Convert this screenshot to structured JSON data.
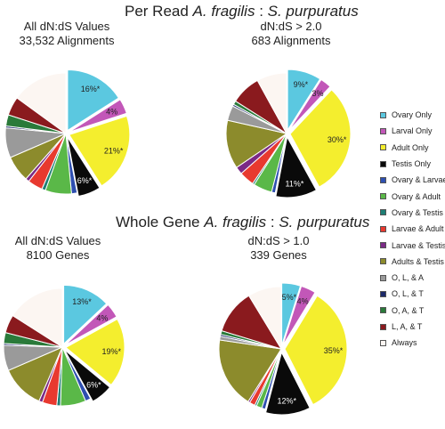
{
  "titles": {
    "per_read": {
      "prefix": "Per Read ",
      "species_a": "A. fragilis",
      "sep": " : ",
      "species_b": "S. purpuratus"
    },
    "whole_gene": {
      "prefix": "Whole Gene ",
      "species_a": "A. fragilis",
      "sep": " : ",
      "species_b": "S. purpuratus"
    }
  },
  "categories": [
    "Ovary Only",
    "Larval Only",
    "Adult Only",
    "Testis Only",
    "Ovary & Larvae",
    "Ovary & Adult",
    "Ovary & Testis",
    "Larvae & Adult",
    "Larvae & Testis",
    "Adults & Testis",
    "O, L, & A",
    "O, L, & T",
    "O, A, & T",
    "L, A, & T",
    "Always"
  ],
  "colors": [
    "#5bc8e0",
    "#c257b8",
    "#f4ee2e",
    "#0a0a0a",
    "#2e4fb0",
    "#5ab848",
    "#1e7e74",
    "#e8392f",
    "#7b2a86",
    "#8c8b2c",
    "#9a9a9a",
    "#1c2a6a",
    "#2a7a3a",
    "#8a1a1e",
    "#fcf6f2"
  ],
  "chart_data": [
    {
      "type": "pie",
      "title": "All dN:dS Values",
      "subtitle": "33,532 Alignments",
      "categories": [
        "Ovary Only",
        "Larval Only",
        "Adult Only",
        "Testis Only",
        "Ovary & Larvae",
        "Ovary & Adult",
        "Ovary & Testis",
        "Larvae & Adult",
        "Larvae & Testis",
        "Adults & Testis",
        "O, L, & A",
        "O, L, & T",
        "O, A, & T",
        "L, A, & T",
        "Always"
      ],
      "values": [
        16,
        4,
        21,
        6,
        1.5,
        7,
        1,
        4,
        1,
        7,
        8,
        0.5,
        3,
        5,
        15
      ],
      "data_labels": [
        "16%*",
        "4%",
        "21%*",
        "6%*",
        "",
        "",
        "",
        "",
        "",
        "",
        "",
        "",
        "",
        "",
        ""
      ]
    },
    {
      "type": "pie",
      "title": "dN:dS > 2.0",
      "subtitle": "683 Alignments",
      "categories": [
        "Ovary Only",
        "Larval Only",
        "Adult Only",
        "Testis Only",
        "Ovary & Larvae",
        "Ovary & Adult",
        "Ovary & Testis",
        "Larvae & Adult",
        "Larvae & Testis",
        "Adults & Testis",
        "O, L, & A",
        "O, L, & T",
        "O, A, & T",
        "L, A, & T",
        "Always"
      ],
      "values": [
        9,
        3,
        30,
        11,
        1,
        5,
        0.5,
        4,
        2,
        13,
        4,
        0.5,
        1,
        8,
        8
      ],
      "data_labels": [
        "9%*",
        "3%",
        "30%*",
        "11%*",
        "",
        "",
        "",
        "",
        "",
        "",
        "",
        "",
        "",
        "",
        ""
      ]
    },
    {
      "type": "pie",
      "title": "All dN:dS Values",
      "subtitle": "8100 Genes",
      "categories": [
        "Ovary Only",
        "Larval Only",
        "Adult Only",
        "Testis Only",
        "Ovary & Larvae",
        "Ovary & Adult",
        "Ovary & Testis",
        "Larvae & Adult",
        "Larvae & Testis",
        "Adults & Testis",
        "O, L, & A",
        "O, L, & T",
        "O, A, & T",
        "L, A, & T",
        "Always"
      ],
      "values": [
        13,
        4,
        19,
        6,
        1.5,
        7,
        1,
        4,
        1,
        12,
        7,
        0.5,
        3,
        5,
        16
      ],
      "data_labels": [
        "13%*",
        "4%",
        "19%*",
        "6%*",
        "",
        "",
        "",
        "",
        "",
        "",
        "",
        "",
        "",
        "",
        ""
      ]
    },
    {
      "type": "pie",
      "title": "dN:dS > 1.0",
      "subtitle": "339 Genes",
      "categories": [
        "Ovary Only",
        "Larval Only",
        "Adult Only",
        "Testis Only",
        "Ovary & Larvae",
        "Ovary & Adult",
        "Ovary & Testis",
        "Larvae & Adult",
        "Larvae & Testis",
        "Adults & Testis",
        "O, L, & A",
        "O, L, & T",
        "O, A, & T",
        "L, A, & T",
        "Always"
      ],
      "values": [
        5,
        4,
        35,
        12,
        1,
        1.5,
        0.5,
        1.5,
        0.5,
        19,
        1,
        0.5,
        1,
        12,
        9
      ],
      "data_labels": [
        "5%*",
        "4%",
        "35%*",
        "12%*",
        "",
        "",
        "",
        "",
        "",
        "",
        "",
        "",
        "",
        "",
        ""
      ]
    }
  ]
}
